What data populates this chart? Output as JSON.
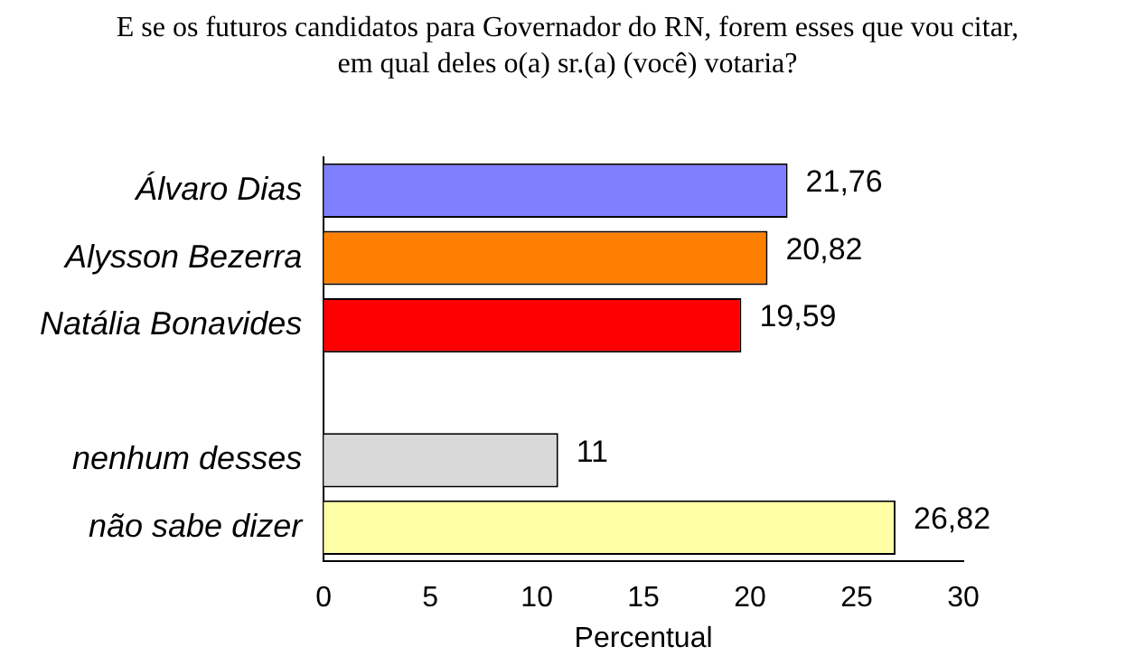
{
  "chart_data": {
    "type": "bar",
    "orientation": "horizontal",
    "title": "E se os futuros candidatos para Governador do RN, forem esses que vou citar,\nem qual deles o(a) sr.(a) (você) votaria?",
    "categories": [
      "Álvaro Dias",
      "Alysson Bezerra",
      "Natália Bonavides",
      null,
      "nenhum desses",
      "não sabe dizer"
    ],
    "values": [
      21.76,
      20.82,
      19.59,
      null,
      11,
      26.82
    ],
    "value_labels": [
      "21,76",
      "20,82",
      "19,59",
      null,
      "11",
      "26,82"
    ],
    "colors": [
      "#7f7fff",
      "#ff8000",
      "#ff0000",
      "#ffffff",
      "#d9d9d9",
      "#ffffa6"
    ],
    "xlim": [
      0,
      30
    ],
    "xticks": [
      0,
      5,
      10,
      15,
      20,
      25,
      30
    ],
    "xlabel": "Percentual",
    "grid": false,
    "legend": false
  }
}
